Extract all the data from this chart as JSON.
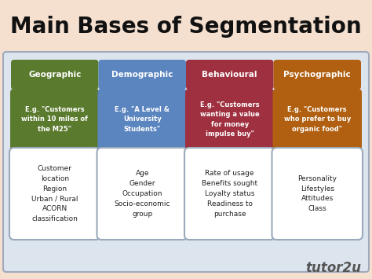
{
  "title": "Main Bases of Segmentation",
  "title_fontsize": 20,
  "title_color": "#111111",
  "background_color": "#f5e0d0",
  "inner_background": "#dce4ee",
  "inner_border_color": "#a0aabb",
  "columns": [
    "Geographic",
    "Demographic",
    "Behavioural",
    "Psychographic"
  ],
  "header_colors": [
    "#5a7a2e",
    "#5b85bf",
    "#9e3040",
    "#b06010"
  ],
  "header_text_color": "#ffffff",
  "example_texts": [
    "E.g. \"Customers\nwithin 10 miles of\nthe M25\"",
    "E.g. \"A Level &\nUniversity\nStudents\"",
    "E.g. \"Customers\nwanting a value\nfor money\nimpulse buy\"",
    "E.g. \"Customers\nwho prefer to buy\norganic food\""
  ],
  "detail_texts": [
    "Customer\nlocation\nRegion\nUrban / Rural\nACORN\nclassification",
    "Age\nGender\nOccupation\nSocio-economic\ngroup",
    "Rate of usage\nBenefits sought\nLoyalty status\nReadiness to\npurchase",
    "Personality\nLifestyles\nAttitudes\nClass"
  ],
  "detail_box_color": "#ffffff",
  "detail_box_border": "#9aaabb",
  "watermark_text": "tutor2u",
  "watermark_color": "#555555",
  "watermark_fontsize": 12
}
